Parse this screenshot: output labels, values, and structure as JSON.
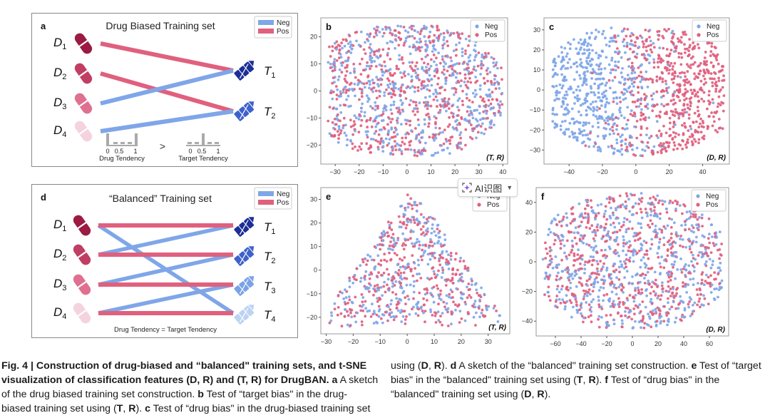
{
  "colors": {
    "neg": "#7fa6e8",
    "pos": "#e0607e",
    "drug_shades": [
      "#9b1b42",
      "#c03e64",
      "#e0708f",
      "#f5d3de"
    ],
    "target_shades": [
      "#1c2f96",
      "#3e62cc",
      "#7aa2e6",
      "#bcd3f3"
    ]
  },
  "panel_a": {
    "letter": "a",
    "title": "Drug Biased Training set",
    "legend": [
      "Neg",
      "Pos"
    ],
    "drugs": [
      "D1",
      "D2",
      "D3",
      "D4"
    ],
    "targets": [
      "T1",
      "T2"
    ],
    "edges": [
      {
        "drug": 1,
        "target": 1,
        "label": "Pos"
      },
      {
        "drug": 2,
        "target": 2,
        "label": "Pos"
      },
      {
        "drug": 3,
        "target": 1,
        "label": "Neg"
      },
      {
        "drug": 4,
        "target": 2,
        "label": "Neg"
      }
    ],
    "hist_ticks": [
      "0",
      "0.5",
      "1"
    ],
    "drug_tendency_label": "Drug Tendency",
    "target_tendency_label": "Target Tendency",
    "comparison": ">"
  },
  "panel_d": {
    "letter": "d",
    "title": "“Balanced” Training set",
    "legend": [
      "Neg",
      "Pos"
    ],
    "drugs": [
      "D1",
      "D2",
      "D3",
      "D4"
    ],
    "targets": [
      "T1",
      "T2",
      "T3",
      "T4"
    ],
    "edges": [
      {
        "drug": 1,
        "target": 1,
        "label": "Pos"
      },
      {
        "drug": 2,
        "target": 2,
        "label": "Pos"
      },
      {
        "drug": 3,
        "target": 3,
        "label": "Pos"
      },
      {
        "drug": 4,
        "target": 4,
        "label": "Pos"
      },
      {
        "drug": 1,
        "target": 4,
        "label": "Neg"
      },
      {
        "drug": 2,
        "target": 1,
        "label": "Neg"
      },
      {
        "drug": 3,
        "target": 2,
        "label": "Neg"
      },
      {
        "drug": 4,
        "target": 3,
        "label": "Neg"
      }
    ],
    "footer": "Drug Tendency  =  Target Tendency"
  },
  "chart_data": [
    {
      "panel": "b",
      "type": "scatter",
      "annotation": "(T, R)",
      "legend": [
        "Neg",
        "Pos"
      ],
      "legend_position": "top-right",
      "xlim": [
        -36,
        42
      ],
      "ylim": [
        -27,
        27
      ],
      "xticks": [
        -30,
        -20,
        -10,
        0,
        10,
        20,
        30,
        40
      ],
      "yticks": [
        -20,
        -10,
        0,
        10,
        20
      ],
      "series": [
        {
          "name": "Neg",
          "description": "~1000 t-SNE points, mixed uniformly with Pos",
          "x_range": [
            -33,
            40
          ],
          "y_range": [
            -24,
            25
          ]
        },
        {
          "name": "Pos",
          "description": "~1000 t-SNE points, mixed uniformly with Neg",
          "x_range": [
            -33,
            40
          ],
          "y_range": [
            -24,
            24
          ]
        }
      ]
    },
    {
      "panel": "c",
      "type": "scatter",
      "annotation": "(D, R)",
      "legend": [
        "Neg",
        "Pos"
      ],
      "legend_position": "top-right",
      "xlim": [
        -55,
        56
      ],
      "ylim": [
        -37,
        36
      ],
      "xticks": [
        -40,
        -20,
        0,
        20,
        40
      ],
      "yticks": [
        -30,
        -20,
        -10,
        0,
        10,
        20,
        30
      ],
      "series": [
        {
          "name": "Neg",
          "description": "concentrated on left side (x<0)",
          "x_range": [
            -50,
            52
          ],
          "y_range": [
            -33,
            32
          ]
        },
        {
          "name": "Pos",
          "description": "concentrated on right side (x>0)",
          "x_range": [
            -45,
            53
          ],
          "y_range": [
            -33,
            26
          ]
        }
      ]
    },
    {
      "panel": "e",
      "type": "scatter",
      "annotation": "(T, R)",
      "legend": [
        "Neg",
        "Pos"
      ],
      "legend_position": "top-right",
      "xlim": [
        -32,
        38
      ],
      "ylim": [
        -27,
        35
      ],
      "xticks": [
        -30,
        -20,
        -10,
        0,
        10,
        20,
        30
      ],
      "yticks": [
        -20,
        -10,
        0,
        10,
        20,
        30
      ],
      "series": [
        {
          "name": "Neg",
          "description": "well mixed, triangular cloud",
          "x_range": [
            -30,
            36
          ],
          "y_range": [
            -24,
            32
          ]
        },
        {
          "name": "Pos",
          "description": "well mixed, triangular cloud",
          "x_range": [
            -30,
            36
          ],
          "y_range": [
            -24,
            32
          ]
        }
      ]
    },
    {
      "panel": "f",
      "type": "scatter",
      "annotation": "(D, R)",
      "legend": [
        "Neg",
        "Pos"
      ],
      "legend_position": "top-right",
      "xlim": [
        -75,
        75
      ],
      "ylim": [
        -50,
        50
      ],
      "xticks": [
        -60,
        -40,
        -20,
        0,
        20,
        40,
        60
      ],
      "yticks": [
        -40,
        -20,
        0,
        20,
        40
      ],
      "series": [
        {
          "name": "Neg",
          "description": "well mixed",
          "x_range": [
            -70,
            70
          ],
          "y_range": [
            -45,
            47
          ]
        },
        {
          "name": "Pos",
          "description": "well mixed",
          "x_range": [
            -70,
            70
          ],
          "y_range": [
            -45,
            47
          ]
        }
      ]
    }
  ],
  "overlay": {
    "ai_button_label": "AI识图",
    "ai_button_chevron": "ˇ"
  },
  "caption": {
    "fig_label": "Fig. 4 | ",
    "title": "Construction of drug-biased and “balanced\" training sets, and t-SNE visualization of classification features (D, R) and (T, R) for DrugBAN.",
    "parts": [
      {
        "letter": "a",
        "text": " A sketch of the drug biased training set construction. "
      },
      {
        "letter": "b",
        "text": " Test of “target bias\" in the drug-biased training set using (T, R). "
      },
      {
        "letter": "c",
        "text": " Test of “drug bias\" in the drug-biased training set using (D, R). "
      },
      {
        "letter": "d",
        "text": " A sketch of the “balanced\" training set construction. "
      },
      {
        "letter": "e",
        "text": " Test of “target bias\" in the “balanced\" training set using (T, R). "
      },
      {
        "letter": "f",
        "text": " Test of “drug bias\" in the “balanced\" training set using (D, R)."
      }
    ],
    "col1_lines": [
      "<b>Fig. 4 | Construction of drug-biased and “balanced\" training sets, and t-SNE</b>",
      "<b>visualization of classification features (D, R) and (T, R) for DrugBAN. a</b> A sketch",
      "of the drug biased training set construction. <b>b</b> Test of “target bias\" in the drug-",
      "biased training set using (<b>T</b>, <b>R</b>). <b>c</b> Test of “drug bias\" in the drug-biased training set"
    ],
    "col2_lines": [
      "using (<b>D</b>, <b>R</b>). <b>d</b> A sketch of the “balanced\" training set construction. <b>e</b> Test of “target",
      "bias\" in the “balanced\" training set using (<b>T</b>, <b>R</b>). <b>f</b> Test of “drug bias\" in the",
      "“balanced\" training set using (<b>D</b>, <b>R</b>)."
    ]
  }
}
